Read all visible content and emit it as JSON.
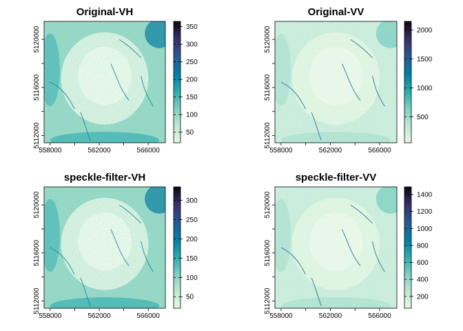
{
  "figure": {
    "panels": [
      {
        "title": "Original-VH",
        "x_ticks": [
          "558000",
          "562000",
          "566000"
        ],
        "y_ticks": [
          "5120000",
          "5116000",
          "5112000"
        ],
        "legend_ticks": [
          "350",
          "300",
          "250",
          "200",
          "150",
          "100",
          "50"
        ]
      },
      {
        "title": "Original-VV",
        "x_ticks": [
          "558000",
          "562000",
          "566000"
        ],
        "y_ticks": [
          "5120000",
          "5116000",
          "5112000"
        ],
        "legend_ticks": [
          "2000",
          "1500",
          "1000",
          "500"
        ]
      },
      {
        "title": "speckle-filter-VH",
        "x_ticks": [
          "558000",
          "562000",
          "566000"
        ],
        "y_ticks": [
          "5120000",
          "5116000",
          "5112000"
        ],
        "legend_ticks": [
          "300",
          "250",
          "200",
          "150",
          "100",
          "50"
        ]
      },
      {
        "title": "speckle-filter-VV",
        "x_ticks": [
          "558000",
          "562000",
          "566000"
        ],
        "y_ticks": [
          "5120000",
          "5116000",
          "5112000"
        ],
        "legend_ticks": [
          "1400",
          "1200",
          "1000",
          "800",
          "600",
          "400",
          "200"
        ]
      }
    ]
  },
  "chart_data": [
    {
      "type": "heatmap",
      "title": "Original-VH",
      "xlabel": "",
      "ylabel": "",
      "x_ticks": [
        558000,
        562000,
        566000
      ],
      "y_ticks": [
        5120000,
        5116000,
        5112000
      ],
      "xlim": [
        557500,
        567400
      ],
      "ylim": [
        5111400,
        5121500
      ],
      "colorbar": {
        "ticks": [
          350,
          300,
          250,
          200,
          150,
          100,
          50
        ],
        "range": [
          20,
          365
        ],
        "colors": [
          "#e8f6e4",
          "#bfe8cf",
          "#7fd0c0",
          "#2aaeb0",
          "#0080a6",
          "#275b95",
          "#3b2f6b",
          "#0d0710"
        ]
      }
    },
    {
      "type": "heatmap",
      "title": "Original-VV",
      "xlabel": "",
      "ylabel": "",
      "x_ticks": [
        558000,
        562000,
        566000
      ],
      "y_ticks": [
        5120000,
        5116000,
        5112000
      ],
      "xlim": [
        557500,
        567400
      ],
      "ylim": [
        5111400,
        5121500
      ],
      "colorbar": {
        "ticks": [
          2000,
          1500,
          1000,
          500
        ],
        "range": [
          50,
          2150
        ],
        "colors": [
          "#e8f6e4",
          "#bfe8cf",
          "#7fd0c0",
          "#2aaeb0",
          "#0080a6",
          "#275b95",
          "#3b2f6b",
          "#0d0710"
        ]
      }
    },
    {
      "type": "heatmap",
      "title": "speckle-filter-VH",
      "xlabel": "",
      "ylabel": "",
      "x_ticks": [
        558000,
        562000,
        566000
      ],
      "y_ticks": [
        5120000,
        5116000,
        5112000
      ],
      "xlim": [
        557500,
        567400
      ],
      "ylim": [
        5111400,
        5121500
      ],
      "colorbar": {
        "ticks": [
          300,
          250,
          200,
          150,
          100,
          50
        ],
        "range": [
          20,
          335
        ],
        "colors": [
          "#e8f6e4",
          "#bfe8cf",
          "#7fd0c0",
          "#2aaeb0",
          "#0080a6",
          "#275b95",
          "#3b2f6b",
          "#0d0710"
        ]
      }
    },
    {
      "type": "heatmap",
      "title": "speckle-filter-VV",
      "xlabel": "",
      "ylabel": "",
      "x_ticks": [
        558000,
        562000,
        566000
      ],
      "y_ticks": [
        5120000,
        5116000,
        5112000
      ],
      "xlim": [
        557500,
        567400
      ],
      "ylim": [
        5111400,
        5121500
      ],
      "colorbar": {
        "ticks": [
          1400,
          1200,
          1000,
          800,
          600,
          400,
          200
        ],
        "range": [
          60,
          1490
        ],
        "colors": [
          "#e8f6e4",
          "#bfe8cf",
          "#7fd0c0",
          "#2aaeb0",
          "#0080a6",
          "#275b95",
          "#3b2f6b",
          "#0d0710"
        ]
      }
    }
  ]
}
